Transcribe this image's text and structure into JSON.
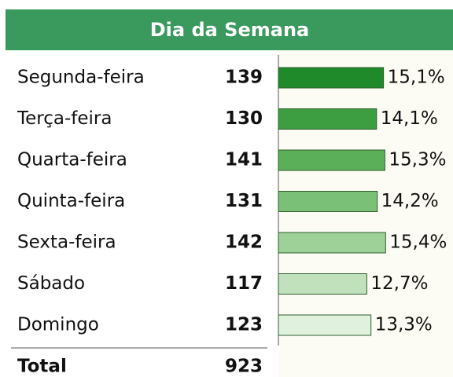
{
  "chart_data": {
    "type": "bar",
    "title": "Dia da Semana",
    "categories": [
      "Segunda-feira",
      "Terça-feira",
      "Quarta-feira",
      "Quinta-feira",
      "Sexta-feira",
      "Sábado",
      "Domingo"
    ],
    "counts": [
      139,
      130,
      141,
      131,
      142,
      117,
      123
    ],
    "values": [
      15.1,
      14.1,
      15.3,
      14.2,
      15.4,
      12.7,
      13.3
    ],
    "value_labels": [
      "15,1%",
      "14,1%",
      "15,3%",
      "14,2%",
      "15,4%",
      "12,7%",
      "13,3%"
    ],
    "colors": [
      "#1f8a2a",
      "#3c9e40",
      "#5caf59",
      "#7bc077",
      "#9dd198",
      "#c0e1bc",
      "#e0f1de"
    ],
    "total_label": "Total",
    "total": 923
  }
}
